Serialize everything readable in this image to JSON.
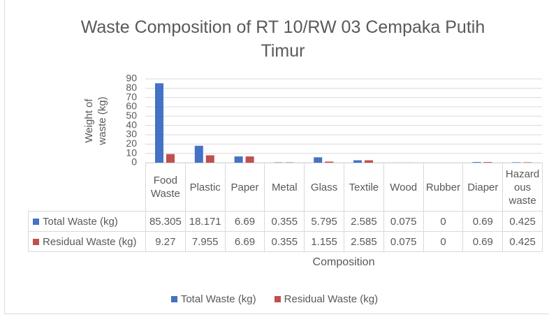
{
  "chart_data": {
    "type": "bar",
    "title": "Waste Composition of RT 10/RW 03 Cempaka Putih Timur",
    "x_label": "Composition",
    "y_label": "Weight of waste (kg)",
    "categories": [
      "Food Waste",
      "Plastic",
      "Paper",
      "Metal",
      "Glass",
      "Textile",
      "Wood",
      "Rubber",
      "Diaper",
      "Hazardous waste"
    ],
    "series": [
      {
        "name": "Total Waste (kg)",
        "color": "#4472c4",
        "values": [
          85.305,
          18.171,
          6.69,
          0.355,
          5.795,
          2.585,
          0.075,
          0,
          0.69,
          0.425
        ]
      },
      {
        "name": "Residual Waste (kg)",
        "color": "#c0504d",
        "values": [
          9.27,
          7.955,
          6.69,
          0.355,
          1.155,
          2.585,
          0.075,
          0,
          0.69,
          0.425
        ]
      }
    ],
    "ylim": [
      0,
      90
    ],
    "yticks": [
      0,
      10,
      20,
      30,
      40,
      50,
      60,
      70,
      80,
      90
    ],
    "grid": true,
    "legend": "bottom",
    "data_table": true
  }
}
